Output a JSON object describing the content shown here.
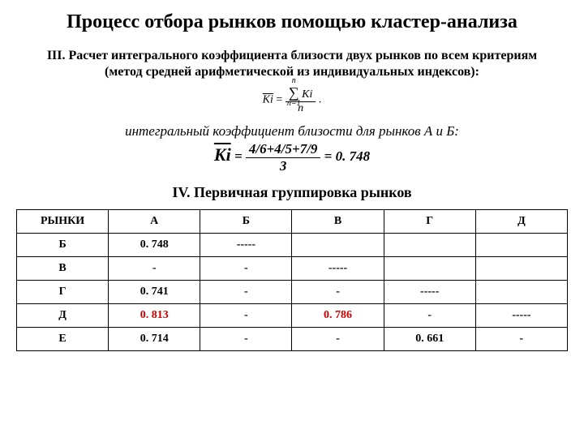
{
  "title": "Процесс отбора рынков помощью кластер-анализа",
  "section3": {
    "intro": "III. Расчет интегрального коэффициента близости двух рынков по всем критериям (метод средней арифметической из индивидуальных индексов):",
    "formula": {
      "lhs_overline": "Ki",
      "equals": " = ",
      "sum_top": "n",
      "sum_bottom": "n=1",
      "sum_body": "Ki",
      "denominator": "n",
      "trail": " ."
    },
    "italic_caption": "интегральный коэффициент близости  для рынков А и Б:",
    "example": {
      "lhs_overline": "Ki",
      "equals": " = ",
      "numerator": "4/6+4/5+7/9",
      "denominator": "3",
      "equals2": " = ",
      "result": "0. 748"
    }
  },
  "section4": {
    "title": "IV. Первичная группировка рынков",
    "headers": [
      "РЫНКИ",
      "А",
      "Б",
      "В",
      "Г",
      "Д"
    ],
    "row_labels": [
      "Б",
      "В",
      "Г",
      "Д",
      "Е"
    ],
    "cells": {
      "r0c0": "0. 748",
      "r0c1": "-----",
      "r1c0": "-",
      "r1c1": "-",
      "r1c2": "-----",
      "r2c0": "0. 741",
      "r2c1": "-",
      "r2c2": "-",
      "r2c3": "-----",
      "r3c0": "0. 813",
      "r3c1": "-",
      "r3c2": "0. 786",
      "r3c3": "-",
      "r3c4": "-----",
      "r4c0": "0. 714",
      "r4c1": "-",
      "r4c2": "-",
      "r4c3": "0. 661",
      "r4c4": "-"
    },
    "highlight": {
      "r3c0": "red",
      "r3c2": "red"
    }
  }
}
